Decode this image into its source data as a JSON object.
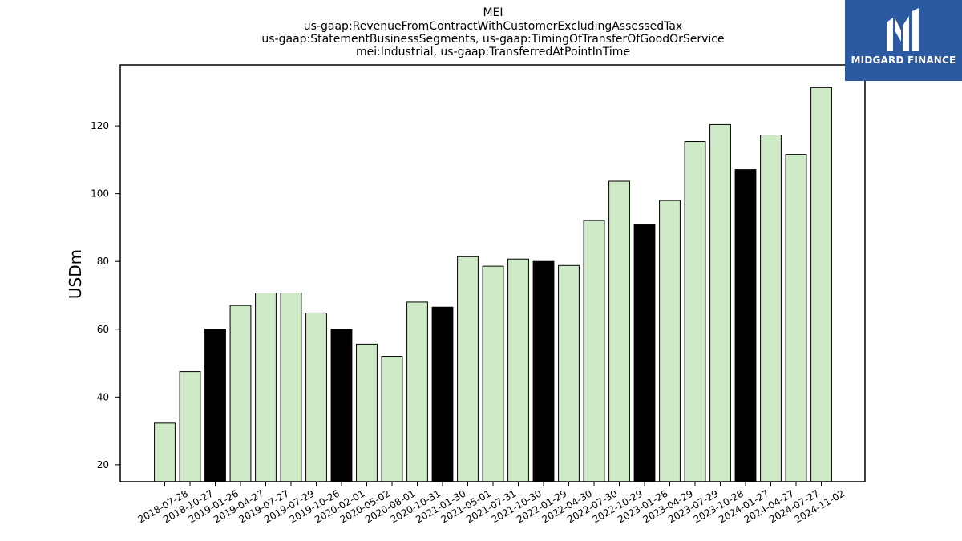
{
  "chart_data": {
    "type": "bar",
    "title_lines": [
      "MEI",
      "us-gaap:RevenueFromContractWithCustomerExcludingAssessedTax",
      "us-gaap:StatementBusinessSegments, us-gaap:TimingOfTransferOfGoodOrService",
      "mei:Industrial, us-gaap:TransferredAtPointInTime"
    ],
    "ylabel": "USDm",
    "xlabel": "",
    "ylim": [
      15,
      138
    ],
    "yticks": [
      20,
      40,
      60,
      80,
      100,
      120
    ],
    "categories": [
      "2018-07-28",
      "2018-10-27",
      "2019-01-26",
      "2019-04-27",
      "2019-07-27",
      "2019-07-29",
      "2019-10-26",
      "2020-02-01",
      "2020-05-02",
      "2020-08-01",
      "2020-10-31",
      "2021-01-30",
      "2021-05-01",
      "2021-07-31",
      "2021-10-30",
      "2022-01-29",
      "2022-04-30",
      "2022-07-30",
      "2022-10-29",
      "2023-01-28",
      "2023-04-29",
      "2023-07-29",
      "2023-10-28",
      "2024-01-27",
      "2024-04-27",
      "2024-07-27",
      "2024-11-02"
    ],
    "values": [
      32.3,
      47.5,
      60.0,
      67.0,
      70.7,
      70.7,
      64.8,
      60.0,
      55.6,
      52.0,
      68.0,
      66.5,
      81.4,
      78.6,
      80.7,
      80.0,
      78.8,
      92.1,
      103.7,
      90.8,
      98.0,
      115.4,
      120.4,
      107.1,
      117.3,
      111.6,
      131.3
    ],
    "highlighted": [
      false,
      false,
      true,
      false,
      false,
      false,
      false,
      true,
      false,
      false,
      false,
      true,
      false,
      false,
      false,
      true,
      false,
      false,
      false,
      true,
      false,
      false,
      false,
      true,
      false,
      false,
      false
    ],
    "colors": {
      "bar": "#cfeac6",
      "highlight": "#000000",
      "edge": "#000000"
    },
    "grid": false,
    "legend": "none"
  },
  "logo": {
    "text": "MIDGARD FINANCE",
    "background": "#2c5aa0"
  }
}
